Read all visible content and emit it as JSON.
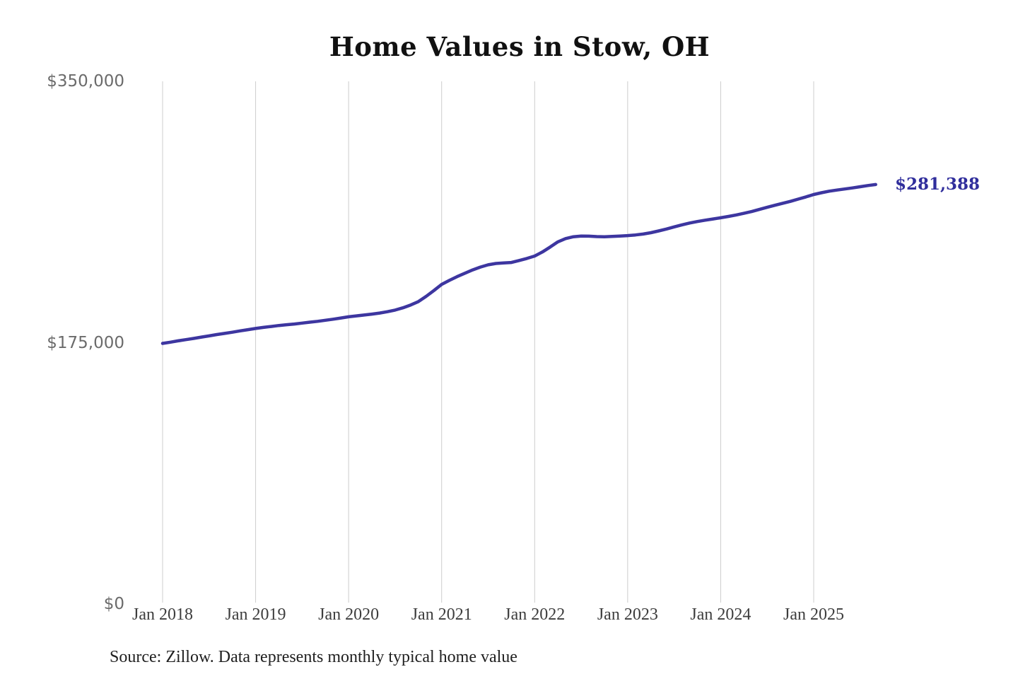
{
  "title": "Home Values in Stow, OH",
  "source_note": "Source: Zillow. Data represents monthly typical home value",
  "latest_value_label": "$281,388",
  "colors": {
    "line": "#3d36a0",
    "latest_value_text": "#302e9c",
    "gridline": "#cccccc",
    "y_tick_text": "#6b6b6b",
    "x_tick_text": "#3d3d3d",
    "title_text": "#111111",
    "source_text": "#1f1f1f",
    "background": "#ffffff"
  },
  "chart_data": {
    "type": "line",
    "title": "Home Values in Stow, OH",
    "xlabel": "",
    "ylabel": "",
    "frequency": "monthly",
    "x_start_month": "2018-01",
    "x_end_month": "2025-09",
    "x_tick_labels": [
      "Jan 2018",
      "Jan 2019",
      "Jan 2020",
      "Jan 2021",
      "Jan 2022",
      "Jan 2023",
      "Jan 2024",
      "Jan 2025"
    ],
    "y_ticks": [
      {
        "label": "$0",
        "value": 0
      },
      {
        "label": "$175,000",
        "value": 175000
      },
      {
        "label": "$350,000",
        "value": 350000
      }
    ],
    "ylim": [
      0,
      350000
    ],
    "grid": "vertical-only",
    "legend": "none",
    "final_value": 281388,
    "series": [
      {
        "name": "Typical home value (USD)",
        "values": [
          175000,
          175800,
          176700,
          177500,
          178300,
          179200,
          180000,
          180900,
          181700,
          182500,
          183400,
          184200,
          185000,
          185700,
          186300,
          187000,
          187500,
          188000,
          188600,
          189200,
          189800,
          190500,
          191200,
          192000,
          192800,
          193400,
          194000,
          194600,
          195300,
          196200,
          197300,
          198800,
          200700,
          203000,
          206500,
          210400,
          214500,
          217200,
          219700,
          222000,
          224200,
          226100,
          227600,
          228500,
          228900,
          229200,
          230500,
          231900,
          233500,
          236200,
          239500,
          243000,
          245200,
          246400,
          246900,
          246800,
          246500,
          246400,
          246600,
          246900,
          247200,
          247600,
          248200,
          249100,
          250300,
          251600,
          253000,
          254400,
          255600,
          256600,
          257500,
          258300,
          259100,
          260000,
          261000,
          262100,
          263300,
          264700,
          266100,
          267500,
          268800,
          270100,
          271600,
          273100,
          274700,
          275900,
          276900,
          277700,
          278400,
          279100,
          279900,
          280700,
          281388
        ]
      }
    ]
  }
}
